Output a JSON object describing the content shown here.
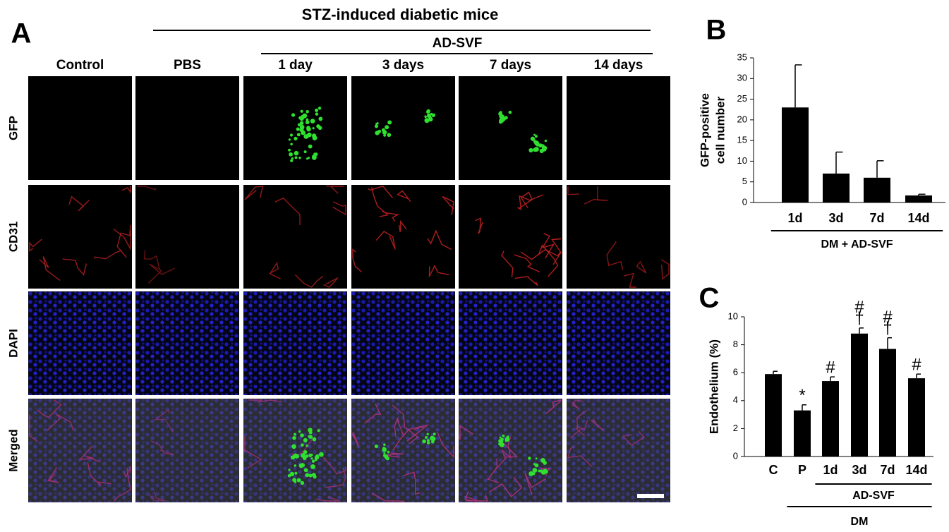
{
  "panel_a": {
    "label": "A",
    "title": "STZ-induced diabetic mice",
    "group": "AD-SVF",
    "columns": [
      "Control",
      "PBS",
      "1 day",
      "3 days",
      "7 days",
      "14 days"
    ],
    "rows": [
      "GFP",
      "CD31",
      "DAPI",
      "Merged"
    ]
  },
  "chart_data": [
    {
      "type": "bar",
      "label": "B",
      "ylabel": [
        "GFP-positive",
        "cell number"
      ],
      "categories": [
        "1d",
        "3d",
        "7d",
        "14d"
      ],
      "series": [
        {
          "color": "#000000",
          "values": [
            23,
            7,
            6,
            1.7
          ],
          "errors": [
            10.3,
            5.2,
            4.1,
            0.3
          ]
        }
      ],
      "ylim": [
        0,
        35
      ],
      "yticks": [
        0,
        5,
        10,
        15,
        20,
        25,
        30,
        35
      ],
      "groups": [
        {
          "label": "DM + AD-SVF",
          "from": "1d",
          "to": "14d"
        }
      ]
    },
    {
      "type": "bar",
      "label": "C",
      "ylabel": [
        "Endothelium (%)"
      ],
      "categories": [
        "C",
        "P",
        "1d",
        "3d",
        "7d",
        "14d"
      ],
      "series": [
        {
          "color": "#000000",
          "values": [
            5.9,
            3.3,
            5.4,
            8.8,
            7.7,
            5.6
          ],
          "errors": [
            0.2,
            0.4,
            0.3,
            0.4,
            0.8,
            0.3
          ]
        }
      ],
      "ylim": [
        0,
        10
      ],
      "yticks": [
        0,
        2,
        4,
        6,
        8,
        10
      ],
      "annotations": [
        {
          "category": "P",
          "lines": [
            "*"
          ]
        },
        {
          "category": "1d",
          "lines": [
            "#"
          ]
        },
        {
          "category": "3d",
          "lines": [
            "#",
            "†"
          ]
        },
        {
          "category": "7d",
          "lines": [
            "#",
            "†"
          ]
        },
        {
          "category": "14d",
          "lines": [
            "#"
          ]
        }
      ],
      "groups": [
        {
          "label": "AD-SVF",
          "from": "1d",
          "to": "14d"
        },
        {
          "label": "DM",
          "from": "P",
          "to": "14d"
        }
      ]
    }
  ]
}
